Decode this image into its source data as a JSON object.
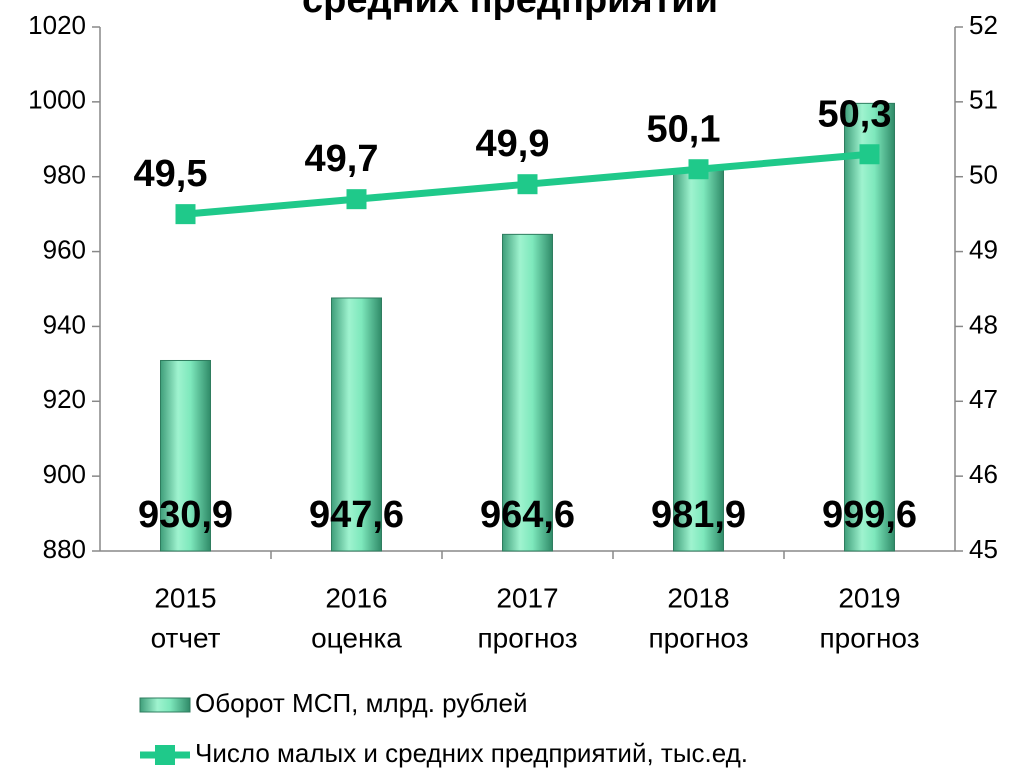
{
  "chart_data": {
    "type": "bar-line",
    "title": "средних предприятий",
    "categories": [
      [
        "2015",
        "отчет"
      ],
      [
        "2016",
        "оценка"
      ],
      [
        "2017",
        "прогноз"
      ],
      [
        "2018",
        "прогноз"
      ],
      [
        "2019",
        "прогноз"
      ]
    ],
    "series": [
      {
        "name": "Оборот МСП, млрд. рублей",
        "type": "bar",
        "color": "#7ee8bc",
        "values": [
          930.9,
          947.6,
          964.6,
          981.9,
          999.6
        ],
        "value_labels": [
          "930,9",
          "947,6",
          "964,6",
          "981,9",
          "999,6"
        ]
      },
      {
        "name": "Число малых и средних предприятий, тыс.ед.",
        "type": "line",
        "axis": "y2",
        "color": "#1fc98a",
        "values": [
          49.5,
          49.7,
          49.9,
          50.1,
          50.3
        ],
        "value_labels": [
          "49,5",
          "49,7",
          "49,9",
          "50,1",
          "50,3"
        ]
      }
    ],
    "ylim": [
      880,
      1020
    ],
    "yticks": [
      880,
      900,
      920,
      940,
      960,
      980,
      1000,
      1020
    ],
    "y2lim": [
      45,
      52
    ],
    "y2ticks": [
      45,
      46,
      47,
      48,
      49,
      50,
      51,
      52
    ]
  }
}
